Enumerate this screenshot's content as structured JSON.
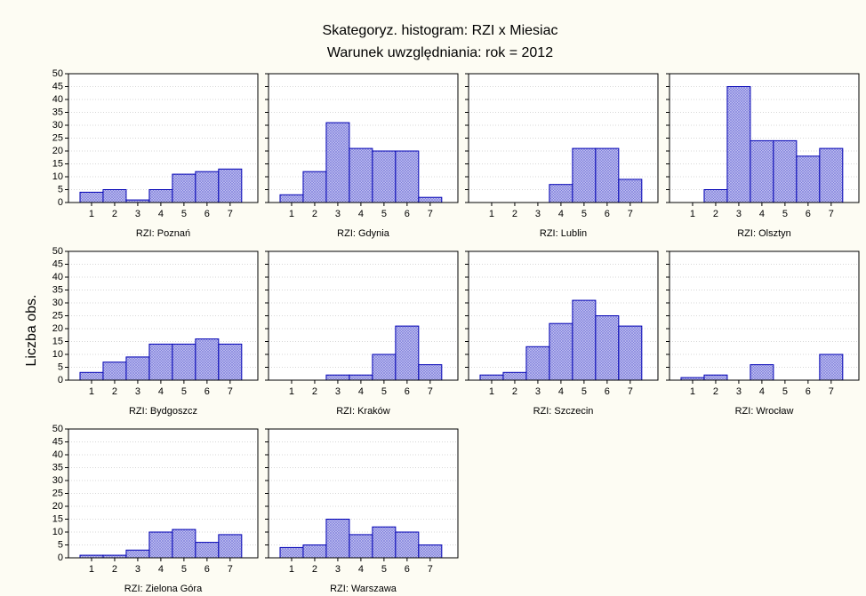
{
  "title": "Skategoryz. histogram: RZI x Miesiac",
  "subtitle": "Warunek uwzględniania: rok = 2012",
  "y_label": "Liczba obs.",
  "chart_data": [
    {
      "type": "bar",
      "title": "RZI: Poznań",
      "categories": [
        1,
        2,
        3,
        4,
        5,
        6,
        7
      ],
      "values": [
        4,
        5,
        1,
        5,
        11,
        12,
        13
      ],
      "color": "#c4c4f2",
      "edge": "#0000b4",
      "ylim": [
        0,
        50
      ],
      "yticks": [
        0,
        5,
        10,
        15,
        20,
        25,
        30,
        35,
        40,
        45,
        50
      ],
      "grid": true
    },
    {
      "type": "bar",
      "title": "RZI: Gdynia",
      "categories": [
        1,
        2,
        3,
        4,
        5,
        6,
        7
      ],
      "values": [
        3,
        12,
        31,
        21,
        20,
        20,
        2
      ],
      "color": "#c4c4f2",
      "edge": "#0000b4",
      "ylim": [
        0,
        50
      ],
      "yticks": [
        0,
        5,
        10,
        15,
        20,
        25,
        30,
        35,
        40,
        45,
        50
      ],
      "grid": true
    },
    {
      "type": "bar",
      "title": "RZI: Lublin",
      "categories": [
        1,
        2,
        3,
        4,
        5,
        6,
        7
      ],
      "values": [
        0,
        0,
        0,
        7,
        21,
        21,
        9
      ],
      "color": "#c4c4f2",
      "edge": "#0000b4",
      "ylim": [
        0,
        50
      ],
      "yticks": [
        0,
        5,
        10,
        15,
        20,
        25,
        30,
        35,
        40,
        45,
        50
      ],
      "grid": true
    },
    {
      "type": "bar",
      "title": "RZI: Olsztyn",
      "categories": [
        1,
        2,
        3,
        4,
        5,
        6,
        7
      ],
      "values": [
        0,
        5,
        45,
        24,
        24,
        18,
        21
      ],
      "color": "#c4c4f2",
      "edge": "#0000b4",
      "ylim": [
        0,
        50
      ],
      "yticks": [
        0,
        5,
        10,
        15,
        20,
        25,
        30,
        35,
        40,
        45,
        50
      ],
      "grid": true
    },
    {
      "type": "bar",
      "title": "RZI: Bydgoszcz",
      "categories": [
        1,
        2,
        3,
        4,
        5,
        6,
        7
      ],
      "values": [
        3,
        7,
        9,
        14,
        14,
        16,
        14
      ],
      "color": "#c4c4f2",
      "edge": "#0000b4",
      "ylim": [
        0,
        50
      ],
      "yticks": [
        0,
        5,
        10,
        15,
        20,
        25,
        30,
        35,
        40,
        45,
        50
      ],
      "grid": true
    },
    {
      "type": "bar",
      "title": "RZI: Kraków",
      "categories": [
        1,
        2,
        3,
        4,
        5,
        6,
        7
      ],
      "values": [
        0,
        0,
        2,
        2,
        10,
        21,
        6
      ],
      "color": "#c4c4f2",
      "edge": "#0000b4",
      "ylim": [
        0,
        50
      ],
      "yticks": [
        0,
        5,
        10,
        15,
        20,
        25,
        30,
        35,
        40,
        45,
        50
      ],
      "grid": true
    },
    {
      "type": "bar",
      "title": "RZI: Szczecin",
      "categories": [
        1,
        2,
        3,
        4,
        5,
        6,
        7
      ],
      "values": [
        2,
        3,
        13,
        22,
        31,
        25,
        21
      ],
      "color": "#c4c4f2",
      "edge": "#0000b4",
      "ylim": [
        0,
        50
      ],
      "yticks": [
        0,
        5,
        10,
        15,
        20,
        25,
        30,
        35,
        40,
        45,
        50
      ],
      "grid": true
    },
    {
      "type": "bar",
      "title": "RZI: Wrocław",
      "categories": [
        1,
        2,
        3,
        4,
        5,
        6,
        7
      ],
      "values": [
        1,
        2,
        0,
        6,
        0,
        0,
        10
      ],
      "color": "#c4c4f2",
      "edge": "#0000b4",
      "ylim": [
        0,
        50
      ],
      "yticks": [
        0,
        5,
        10,
        15,
        20,
        25,
        30,
        35,
        40,
        45,
        50
      ],
      "grid": true
    },
    {
      "type": "bar",
      "title": "RZI: Zielona Góra",
      "categories": [
        1,
        2,
        3,
        4,
        5,
        6,
        7
      ],
      "values": [
        1,
        1,
        3,
        10,
        11,
        6,
        9
      ],
      "color": "#c4c4f2",
      "edge": "#0000b4",
      "ylim": [
        0,
        50
      ],
      "yticks": [
        0,
        5,
        10,
        15,
        20,
        25,
        30,
        35,
        40,
        45,
        50
      ],
      "grid": true
    },
    {
      "type": "bar",
      "title": "RZI: Warszawa",
      "categories": [
        1,
        2,
        3,
        4,
        5,
        6,
        7
      ],
      "values": [
        4,
        5,
        15,
        9,
        12,
        10,
        5
      ],
      "color": "#c4c4f2",
      "edge": "#0000b4",
      "ylim": [
        0,
        50
      ],
      "yticks": [
        0,
        5,
        10,
        15,
        20,
        25,
        30,
        35,
        40,
        45,
        50
      ],
      "grid": true
    }
  ]
}
